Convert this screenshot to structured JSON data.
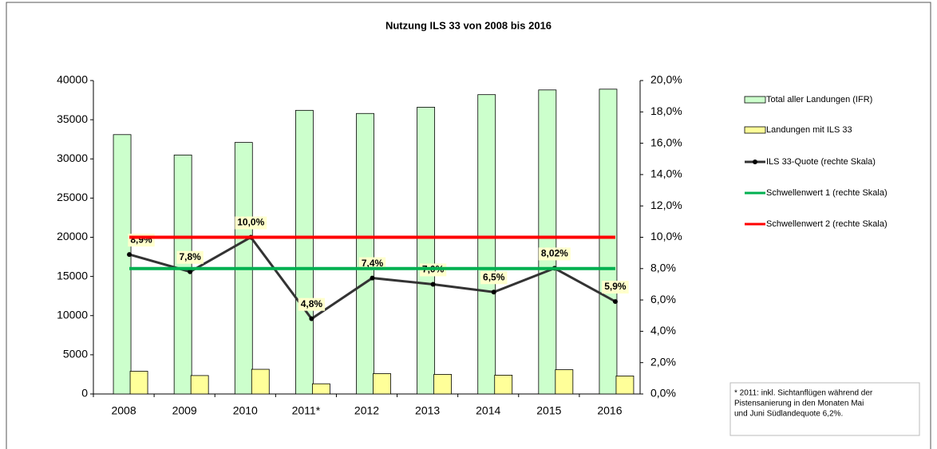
{
  "chart_data": {
    "type": "bar",
    "title": "Nutzung ILS 33 von 2008 bis 2016",
    "categories": [
      "2008",
      "2009",
      "2010",
      "2011*",
      "2012",
      "2013",
      "2014",
      "2015",
      "2016"
    ],
    "ylim": [
      0,
      40000
    ],
    "yticks": [
      0,
      5000,
      10000,
      15000,
      20000,
      25000,
      30000,
      35000,
      40000
    ],
    "y2lim": [
      0,
      20
    ],
    "y2ticks": [
      {
        "value": 0,
        "label": "0,0%"
      },
      {
        "value": 2,
        "label": "2,0%"
      },
      {
        "value": 4,
        "label": "4,0%"
      },
      {
        "value": 6,
        "label": "6,0%"
      },
      {
        "value": 8,
        "label": "8,0%"
      },
      {
        "value": 10,
        "label": "10,0%"
      },
      {
        "value": 12,
        "label": "12,0%"
      },
      {
        "value": 14,
        "label": "14,0%"
      },
      {
        "value": 16,
        "label": "16,0%"
      },
      {
        "value": 18,
        "label": "18,0%"
      },
      {
        "value": 20,
        "label": "20,0%"
      }
    ],
    "series": [
      {
        "name": "Total aller Landungen (IFR)",
        "type": "bar",
        "color": "#ccffcc",
        "values": [
          33100,
          30500,
          32100,
          36200,
          35800,
          36600,
          38200,
          38800,
          38900
        ]
      },
      {
        "name": "Landungen mit ILS 33",
        "type": "bar",
        "color": "#ffff99",
        "values": [
          2900,
          2350,
          3150,
          1300,
          2600,
          2500,
          2400,
          3100,
          2300
        ]
      },
      {
        "name": "ILS 33-Quote (rechte Skala)",
        "type": "line",
        "axis": "y2",
        "color": "#333333",
        "values": [
          8.9,
          7.8,
          10.0,
          4.8,
          7.4,
          7.0,
          6.5,
          8.02,
          5.9
        ],
        "value_labels": [
          "8,9%",
          "7,8%",
          "10,0%",
          "4,8%",
          "7,4%",
          "7,0%",
          "6,5%",
          "8,02%",
          "5,9%"
        ]
      },
      {
        "name": "Schwellenwert 1 (rechte Skala)",
        "type": "line",
        "axis": "y2",
        "color": "#00b050",
        "values": [
          8,
          8,
          8,
          8,
          8,
          8,
          8,
          8,
          8
        ]
      },
      {
        "name": "Schwellenwert 2  (rechte Skala)",
        "type": "line",
        "axis": "y2",
        "color": "#ff0000",
        "values": [
          10,
          10,
          10,
          10,
          10,
          10,
          10,
          10,
          10
        ]
      }
    ],
    "annotation": [
      "* 2011: inkl. Sichtanflügen während der",
      "Pistensanierung in den Monaten Mai",
      "und Juni  Südlandequote  6,2%."
    ]
  }
}
